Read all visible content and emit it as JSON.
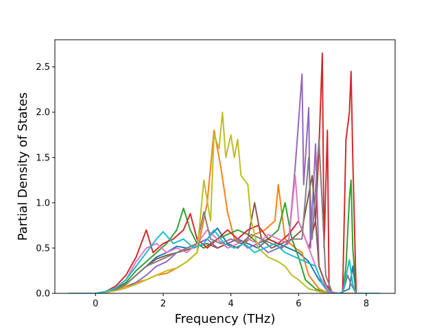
{
  "chart_data": {
    "type": "line",
    "title": "",
    "xlabel": "Frequency (THz)",
    "ylabel": "Partial Density of States",
    "xlim": [
      -1.2,
      8.85
    ],
    "ylim": [
      0,
      2.8
    ],
    "xticks": [
      0,
      2,
      4,
      6,
      8
    ],
    "xtick_labels": [
      "0",
      "2",
      "4",
      "6",
      "8"
    ],
    "yticks": [
      0,
      0.5,
      1.0,
      1.5,
      2.0,
      2.5
    ],
    "ytick_labels": [
      "0.0",
      "0.5",
      "1.0",
      "1.5",
      "2.0",
      "2.5"
    ],
    "grid": false,
    "legend": "none",
    "series": [
      {
        "color": "#1f77b4",
        "points": [
          [
            -0.8,
            0
          ],
          [
            0,
            0
          ],
          [
            0.3,
            0.01
          ],
          [
            0.6,
            0.05
          ],
          [
            0.9,
            0.1
          ],
          [
            1.2,
            0.2
          ],
          [
            1.5,
            0.3
          ],
          [
            1.8,
            0.4
          ],
          [
            2.1,
            0.45
          ],
          [
            2.4,
            0.52
          ],
          [
            2.7,
            0.5
          ],
          [
            3.0,
            0.55
          ],
          [
            3.3,
            0.6
          ],
          [
            3.6,
            0.72
          ],
          [
            3.9,
            0.55
          ],
          [
            4.2,
            0.6
          ],
          [
            4.5,
            0.55
          ],
          [
            4.8,
            0.5
          ],
          [
            5.1,
            0.6
          ],
          [
            5.4,
            0.55
          ],
          [
            5.7,
            0.5
          ],
          [
            6.0,
            0.45
          ],
          [
            6.3,
            0.35
          ],
          [
            6.6,
            0.15
          ],
          [
            6.9,
            0.02
          ],
          [
            7.2,
            0
          ],
          [
            7.5,
            0.05
          ],
          [
            7.6,
            0.3
          ],
          [
            7.7,
            0
          ],
          [
            8.4,
            0
          ]
        ]
      },
      {
        "color": "#ff7f0e",
        "points": [
          [
            -0.8,
            0
          ],
          [
            0,
            0
          ],
          [
            0.3,
            0.01
          ],
          [
            0.6,
            0.04
          ],
          [
            0.9,
            0.08
          ],
          [
            1.2,
            0.12
          ],
          [
            1.5,
            0.15
          ],
          [
            1.8,
            0.2
          ],
          [
            2.1,
            0.22
          ],
          [
            2.4,
            0.28
          ],
          [
            2.7,
            0.35
          ],
          [
            3.0,
            0.45
          ],
          [
            3.3,
            1.0
          ],
          [
            3.5,
            1.8
          ],
          [
            3.7,
            1.4
          ],
          [
            3.9,
            0.9
          ],
          [
            4.1,
            0.6
          ],
          [
            4.4,
            0.55
          ],
          [
            4.7,
            0.65
          ],
          [
            5.0,
            0.7
          ],
          [
            5.3,
            0.8
          ],
          [
            5.4,
            1.2
          ],
          [
            5.6,
            0.6
          ],
          [
            5.9,
            0.5
          ],
          [
            6.1,
            0.45
          ],
          [
            6.3,
            0.2
          ],
          [
            6.6,
            0.05
          ],
          [
            6.9,
            0
          ],
          [
            8.4,
            0
          ]
        ]
      },
      {
        "color": "#2ca02c",
        "points": [
          [
            -0.8,
            0
          ],
          [
            0,
            0
          ],
          [
            0.3,
            0.02
          ],
          [
            0.6,
            0.05
          ],
          [
            0.9,
            0.12
          ],
          [
            1.2,
            0.25
          ],
          [
            1.5,
            0.35
          ],
          [
            1.8,
            0.45
          ],
          [
            2.1,
            0.55
          ],
          [
            2.4,
            0.7
          ],
          [
            2.6,
            0.94
          ],
          [
            2.8,
            0.7
          ],
          [
            3.0,
            0.55
          ],
          [
            3.2,
            0.5
          ],
          [
            3.4,
            0.55
          ],
          [
            3.6,
            0.6
          ],
          [
            3.9,
            0.65
          ],
          [
            4.2,
            0.7
          ],
          [
            4.5,
            0.65
          ],
          [
            4.8,
            0.55
          ],
          [
            5.1,
            0.6
          ],
          [
            5.4,
            0.7
          ],
          [
            5.6,
            1.0
          ],
          [
            5.8,
            0.6
          ],
          [
            6.0,
            0.4
          ],
          [
            6.2,
            0.15
          ],
          [
            6.5,
            0.05
          ],
          [
            6.8,
            0
          ],
          [
            7.3,
            0
          ],
          [
            7.4,
            0.3
          ],
          [
            7.5,
            1.05
          ],
          [
            7.55,
            1.25
          ],
          [
            7.6,
            0.5
          ],
          [
            7.7,
            0
          ],
          [
            8.4,
            0
          ]
        ]
      },
      {
        "color": "#d62728",
        "points": [
          [
            -0.8,
            0
          ],
          [
            0,
            0
          ],
          [
            0.3,
            0.02
          ],
          [
            0.6,
            0.08
          ],
          [
            0.9,
            0.2
          ],
          [
            1.2,
            0.4
          ],
          [
            1.5,
            0.7
          ],
          [
            1.7,
            0.45
          ],
          [
            2.0,
            0.55
          ],
          [
            2.3,
            0.6
          ],
          [
            2.6,
            0.7
          ],
          [
            2.8,
            0.88
          ],
          [
            3.0,
            0.6
          ],
          [
            3.3,
            0.5
          ],
          [
            3.6,
            0.6
          ],
          [
            3.9,
            0.7
          ],
          [
            4.2,
            0.6
          ],
          [
            4.5,
            0.7
          ],
          [
            4.8,
            0.75
          ],
          [
            5.1,
            0.6
          ],
          [
            5.4,
            0.55
          ],
          [
            5.7,
            0.65
          ],
          [
            6.0,
            0.8
          ],
          [
            6.3,
            0.5
          ],
          [
            6.5,
            0.8
          ],
          [
            6.6,
            1.6
          ],
          [
            6.7,
            2.65
          ],
          [
            6.75,
            0.5
          ],
          [
            6.85,
            1.8
          ],
          [
            6.9,
            0
          ],
          [
            7.3,
            0
          ],
          [
            7.4,
            1.7
          ],
          [
            7.5,
            2.0
          ],
          [
            7.55,
            2.45
          ],
          [
            7.6,
            1.5
          ],
          [
            7.7,
            0
          ],
          [
            8.4,
            0
          ]
        ]
      },
      {
        "color": "#9467bd",
        "points": [
          [
            -0.8,
            0
          ],
          [
            0,
            0
          ],
          [
            0.3,
            0.01
          ],
          [
            0.6,
            0.03
          ],
          [
            0.9,
            0.06
          ],
          [
            1.2,
            0.12
          ],
          [
            1.5,
            0.2
          ],
          [
            1.8,
            0.3
          ],
          [
            2.1,
            0.35
          ],
          [
            2.4,
            0.45
          ],
          [
            2.7,
            0.5
          ],
          [
            3.0,
            0.55
          ],
          [
            3.3,
            0.6
          ],
          [
            3.6,
            0.5
          ],
          [
            3.9,
            0.55
          ],
          [
            4.2,
            0.6
          ],
          [
            4.5,
            0.5
          ],
          [
            4.8,
            0.55
          ],
          [
            5.1,
            0.45
          ],
          [
            5.4,
            0.5
          ],
          [
            5.7,
            0.55
          ],
          [
            5.9,
            1.4
          ],
          [
            6.0,
            1.9
          ],
          [
            6.1,
            2.42
          ],
          [
            6.15,
            1.2
          ],
          [
            6.3,
            2.05
          ],
          [
            6.35,
            0.5
          ],
          [
            6.5,
            1.65
          ],
          [
            6.6,
            0.3
          ],
          [
            6.8,
            0.1
          ],
          [
            7.0,
            0
          ],
          [
            8.4,
            0
          ]
        ]
      },
      {
        "color": "#8c564b",
        "points": [
          [
            -0.8,
            0
          ],
          [
            0,
            0
          ],
          [
            0.3,
            0.01
          ],
          [
            0.6,
            0.05
          ],
          [
            0.9,
            0.1
          ],
          [
            1.2,
            0.2
          ],
          [
            1.5,
            0.3
          ],
          [
            1.8,
            0.38
          ],
          [
            2.1,
            0.42
          ],
          [
            2.4,
            0.45
          ],
          [
            2.7,
            0.48
          ],
          [
            3.0,
            0.52
          ],
          [
            3.3,
            0.55
          ],
          [
            3.6,
            0.5
          ],
          [
            3.9,
            0.55
          ],
          [
            4.2,
            0.5
          ],
          [
            4.5,
            0.6
          ],
          [
            4.7,
            1.0
          ],
          [
            4.9,
            0.6
          ],
          [
            5.2,
            0.5
          ],
          [
            5.5,
            0.55
          ],
          [
            5.8,
            0.6
          ],
          [
            6.1,
            0.7
          ],
          [
            6.4,
            1.3
          ],
          [
            6.6,
            0.3
          ],
          [
            6.8,
            0.1
          ],
          [
            7.0,
            0
          ],
          [
            8.4,
            0
          ]
        ]
      },
      {
        "color": "#e377c2",
        "points": [
          [
            -0.8,
            0
          ],
          [
            0,
            0
          ],
          [
            0.3,
            0.02
          ],
          [
            0.6,
            0.06
          ],
          [
            0.9,
            0.15
          ],
          [
            1.2,
            0.35
          ],
          [
            1.5,
            0.5
          ],
          [
            1.8,
            0.55
          ],
          [
            2.1,
            0.45
          ],
          [
            2.4,
            0.5
          ],
          [
            2.7,
            0.45
          ],
          [
            3.0,
            0.55
          ],
          [
            3.3,
            0.7
          ],
          [
            3.6,
            0.6
          ],
          [
            3.9,
            0.5
          ],
          [
            4.2,
            0.55
          ],
          [
            4.5,
            0.6
          ],
          [
            4.8,
            0.55
          ],
          [
            5.1,
            0.65
          ],
          [
            5.4,
            0.6
          ],
          [
            5.7,
            0.55
          ],
          [
            5.9,
            1.3
          ],
          [
            6.0,
            0.8
          ],
          [
            6.3,
            0.5
          ],
          [
            6.6,
            0.2
          ],
          [
            6.9,
            0.02
          ],
          [
            7.2,
            0
          ],
          [
            8.4,
            0
          ]
        ]
      },
      {
        "color": "#7f7f7f",
        "points": [
          [
            -0.8,
            0
          ],
          [
            0,
            0
          ],
          [
            0.3,
            0.01
          ],
          [
            0.6,
            0.04
          ],
          [
            0.9,
            0.1
          ],
          [
            1.2,
            0.2
          ],
          [
            1.5,
            0.3
          ],
          [
            1.8,
            0.35
          ],
          [
            2.1,
            0.4
          ],
          [
            2.4,
            0.45
          ],
          [
            2.7,
            0.5
          ],
          [
            3.0,
            0.55
          ],
          [
            3.2,
            0.9
          ],
          [
            3.4,
            0.6
          ],
          [
            3.7,
            0.55
          ],
          [
            4.0,
            0.6
          ],
          [
            4.3,
            0.55
          ],
          [
            4.6,
            0.65
          ],
          [
            4.9,
            0.6
          ],
          [
            5.2,
            0.55
          ],
          [
            5.5,
            0.5
          ],
          [
            5.8,
            0.6
          ],
          [
            6.1,
            0.6
          ],
          [
            6.3,
            1.5
          ],
          [
            6.4,
            0.6
          ],
          [
            6.6,
            1.7
          ],
          [
            6.8,
            0.2
          ],
          [
            7.0,
            0
          ],
          [
            7.3,
            0
          ],
          [
            7.45,
            0.2
          ],
          [
            7.55,
            0.1
          ],
          [
            7.7,
            0
          ],
          [
            8.4,
            0
          ]
        ]
      },
      {
        "color": "#bcbd22",
        "points": [
          [
            -0.8,
            0
          ],
          [
            0,
            0
          ],
          [
            0.3,
            0.01
          ],
          [
            0.6,
            0.03
          ],
          [
            0.9,
            0.06
          ],
          [
            1.2,
            0.1
          ],
          [
            1.5,
            0.15
          ],
          [
            1.8,
            0.2
          ],
          [
            2.1,
            0.25
          ],
          [
            2.4,
            0.28
          ],
          [
            2.7,
            0.35
          ],
          [
            3.0,
            0.45
          ],
          [
            3.2,
            1.25
          ],
          [
            3.4,
            0.8
          ],
          [
            3.5,
            1.75
          ],
          [
            3.65,
            1.6
          ],
          [
            3.75,
            2.0
          ],
          [
            3.85,
            1.5
          ],
          [
            4.0,
            1.75
          ],
          [
            4.1,
            1.5
          ],
          [
            4.2,
            1.7
          ],
          [
            4.3,
            1.3
          ],
          [
            4.5,
            1.2
          ],
          [
            4.6,
            0.8
          ],
          [
            4.8,
            0.5
          ],
          [
            5.1,
            0.4
          ],
          [
            5.4,
            0.35
          ],
          [
            5.6,
            0.3
          ],
          [
            5.8,
            0.2
          ],
          [
            6.0,
            0.15
          ],
          [
            6.3,
            0.05
          ],
          [
            6.6,
            0.02
          ],
          [
            6.9,
            0
          ],
          [
            8.4,
            0
          ]
        ]
      },
      {
        "color": "#17becf",
        "points": [
          [
            -0.8,
            0
          ],
          [
            0,
            0
          ],
          [
            0.3,
            0.02
          ],
          [
            0.6,
            0.06
          ],
          [
            0.9,
            0.15
          ],
          [
            1.2,
            0.3
          ],
          [
            1.5,
            0.45
          ],
          [
            1.8,
            0.6
          ],
          [
            2.0,
            0.68
          ],
          [
            2.3,
            0.55
          ],
          [
            2.6,
            0.6
          ],
          [
            2.9,
            0.5
          ],
          [
            3.2,
            0.55
          ],
          [
            3.5,
            0.7
          ],
          [
            3.8,
            0.55
          ],
          [
            4.1,
            0.5
          ],
          [
            4.4,
            0.55
          ],
          [
            4.7,
            0.45
          ],
          [
            5.0,
            0.5
          ],
          [
            5.3,
            0.55
          ],
          [
            5.6,
            0.45
          ],
          [
            5.9,
            0.4
          ],
          [
            6.2,
            0.35
          ],
          [
            6.5,
            0.3
          ],
          [
            6.7,
            0.1
          ],
          [
            6.9,
            0
          ],
          [
            7.3,
            0
          ],
          [
            7.5,
            0.37
          ],
          [
            7.6,
            0.1
          ],
          [
            7.7,
            0
          ],
          [
            8.4,
            0
          ]
        ]
      }
    ]
  }
}
